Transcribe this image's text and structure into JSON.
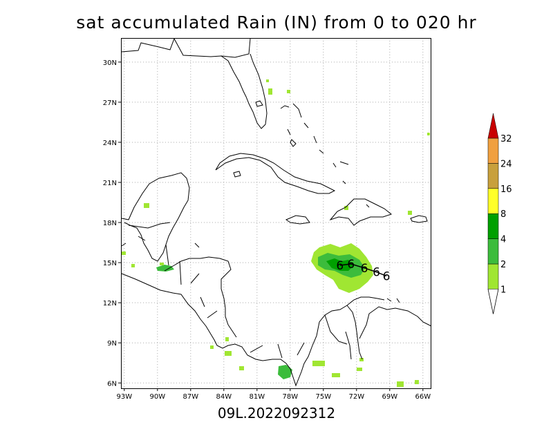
{
  "title": "sat accumulated Rain (IN) from 0 to 020 hr",
  "subtitle": "09L.2022092312",
  "x_ticks": [
    "93W",
    "90W",
    "87W",
    "84W",
    "81W",
    "78W",
    "75W",
    "72W",
    "69W",
    "66W"
  ],
  "y_ticks": [
    "6N",
    "9N",
    "12N",
    "15N",
    "18N",
    "21N",
    "24N",
    "27N",
    "30N"
  ],
  "colorbar": {
    "levels": [
      "1",
      "2",
      "4",
      "8",
      "16",
      "24",
      "32"
    ],
    "colors": [
      "#a0e632",
      "#3cbc3c",
      "#00a000",
      "#ffff28",
      "#c8a03c",
      "#f0a040",
      "#c80000"
    ]
  },
  "track_marker": "6",
  "track_points": [
    {
      "lon": -73.5,
      "lat": 14.8
    },
    {
      "lon": -72.5,
      "lat": 14.9
    },
    {
      "lon": -71.3,
      "lat": 14.6
    },
    {
      "lon": -70.2,
      "lat": 14.3
    },
    {
      "lon": -69.3,
      "lat": 14.0
    }
  ],
  "colors": {
    "coast": "#000000",
    "grid": "#aaaaaa"
  }
}
